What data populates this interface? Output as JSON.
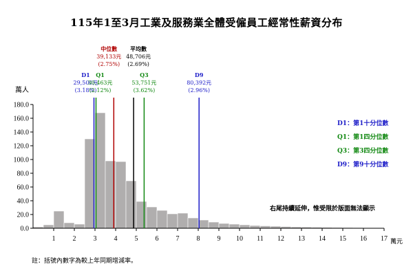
{
  "title": "115年1至3月工業及服務業全體受僱員工經常性薪資分布",
  "ylabel": "萬人",
  "xunit": "萬元",
  "note": "註：括號內數字為較上年同期增減率。",
  "right_note": "右尾持續延伸，惟受限於版面無法顯示",
  "colors": {
    "bar": "#b0aeae",
    "median": "#b00000",
    "mean": "#000000",
    "quartile": "#118811",
    "decile": "#1c1cc8"
  },
  "markers": [
    {
      "id": "D1",
      "label": "D1",
      "value_text": "29,500元",
      "change_text": "(3.18%)",
      "x": 2.95,
      "color": "#1c1cc8"
    },
    {
      "id": "Q1",
      "label": "Q1",
      "value_text": "30,463元",
      "change_text": "(2.12%)",
      "x": 3.05,
      "color": "#118811"
    },
    {
      "id": "median",
      "label": "中位數",
      "value_text": "39,133元",
      "change_text": "(2.75%)",
      "x": 3.91,
      "color": "#b00000"
    },
    {
      "id": "mean",
      "label": "平均數",
      "value_text": "48,706元",
      "change_text": "(2.69%)",
      "x": 4.87,
      "color": "#000000"
    },
    {
      "id": "Q3",
      "label": "Q3",
      "value_text": "53,751元",
      "change_text": "(3.62%)",
      "x": 5.38,
      "color": "#118811"
    },
    {
      "id": "D9",
      "label": "D9",
      "value_text": "80,392元",
      "change_text": "(2.96%)",
      "x": 8.04,
      "color": "#1c1cc8"
    }
  ],
  "legend": [
    {
      "key": "D1",
      "sep": "：",
      "text": "第1十分位數",
      "color": "#1c1cc8"
    },
    {
      "key": "Q1",
      "sep": "：",
      "text": "第1四分位數",
      "color": "#118811"
    },
    {
      "key": "Q3",
      "sep": "：",
      "text": "第3四分位數",
      "color": "#118811"
    },
    {
      "key": "D9",
      "sep": "：",
      "text": "第9十分位數",
      "color": "#1c1cc8"
    }
  ],
  "chart_data": {
    "type": "bar",
    "title": "115年1至3月工業及服務業全體受僱員工經常性薪資分布",
    "xlabel": "萬元",
    "ylabel": "萬人",
    "xlim": [
      0,
      17
    ],
    "ylim": [
      0,
      180
    ],
    "y_ticks": [
      "0.0",
      "20.0",
      "40.0",
      "60.0",
      "80.0",
      "100.0",
      "120.0",
      "140.0",
      "160.0",
      "180.0"
    ],
    "x_ticks": [
      "1",
      "2",
      "3",
      "4",
      "5",
      "6",
      "7",
      "8",
      "9",
      "10",
      "11",
      "12",
      "13",
      "14",
      "15",
      "16",
      "17"
    ],
    "grid": false,
    "bins": [
      {
        "x0": 0.0,
        "x1": 0.5,
        "value": 2
      },
      {
        "x0": 0.5,
        "x1": 1.0,
        "value": 5
      },
      {
        "x0": 1.0,
        "x1": 1.5,
        "value": 25
      },
      {
        "x0": 1.5,
        "x1": 2.0,
        "value": 8
      },
      {
        "x0": 2.0,
        "x1": 2.5,
        "value": 6
      },
      {
        "x0": 2.5,
        "x1": 3.0,
        "value": 130
      },
      {
        "x0": 3.0,
        "x1": 3.5,
        "value": 168
      },
      {
        "x0": 3.5,
        "x1": 4.0,
        "value": 98
      },
      {
        "x0": 4.0,
        "x1": 4.5,
        "value": 97
      },
      {
        "x0": 4.5,
        "x1": 5.0,
        "value": 69
      },
      {
        "x0": 5.0,
        "x1": 5.5,
        "value": 39
      },
      {
        "x0": 5.5,
        "x1": 6.0,
        "value": 31
      },
      {
        "x0": 6.0,
        "x1": 6.5,
        "value": 26
      },
      {
        "x0": 6.5,
        "x1": 7.0,
        "value": 21
      },
      {
        "x0": 7.0,
        "x1": 7.5,
        "value": 22
      },
      {
        "x0": 7.5,
        "x1": 8.0,
        "value": 15
      },
      {
        "x0": 8.0,
        "x1": 8.5,
        "value": 12
      },
      {
        "x0": 8.5,
        "x1": 9.0,
        "value": 9
      },
      {
        "x0": 9.0,
        "x1": 9.5,
        "value": 7
      },
      {
        "x0": 9.5,
        "x1": 10.0,
        "value": 6
      },
      {
        "x0": 10.0,
        "x1": 10.5,
        "value": 5
      },
      {
        "x0": 10.5,
        "x1": 11.0,
        "value": 4
      },
      {
        "x0": 11.0,
        "x1": 11.5,
        "value": 3.5
      },
      {
        "x0": 11.5,
        "x1": 12.0,
        "value": 3
      },
      {
        "x0": 12.0,
        "x1": 12.5,
        "value": 2.5
      },
      {
        "x0": 12.5,
        "x1": 13.0,
        "value": 2
      },
      {
        "x0": 13.0,
        "x1": 13.5,
        "value": 1.8
      },
      {
        "x0": 13.5,
        "x1": 14.0,
        "value": 1.5
      },
      {
        "x0": 14.0,
        "x1": 14.5,
        "value": 1.3
      },
      {
        "x0": 14.5,
        "x1": 15.0,
        "value": 1.1
      },
      {
        "x0": 15.0,
        "x1": 15.5,
        "value": 1
      },
      {
        "x0": 15.5,
        "x1": 16.0,
        "value": 0.9
      },
      {
        "x0": 16.0,
        "x1": 16.5,
        "value": 0.8
      },
      {
        "x0": 16.5,
        "x1": 17.0,
        "value": 0.7
      }
    ]
  }
}
